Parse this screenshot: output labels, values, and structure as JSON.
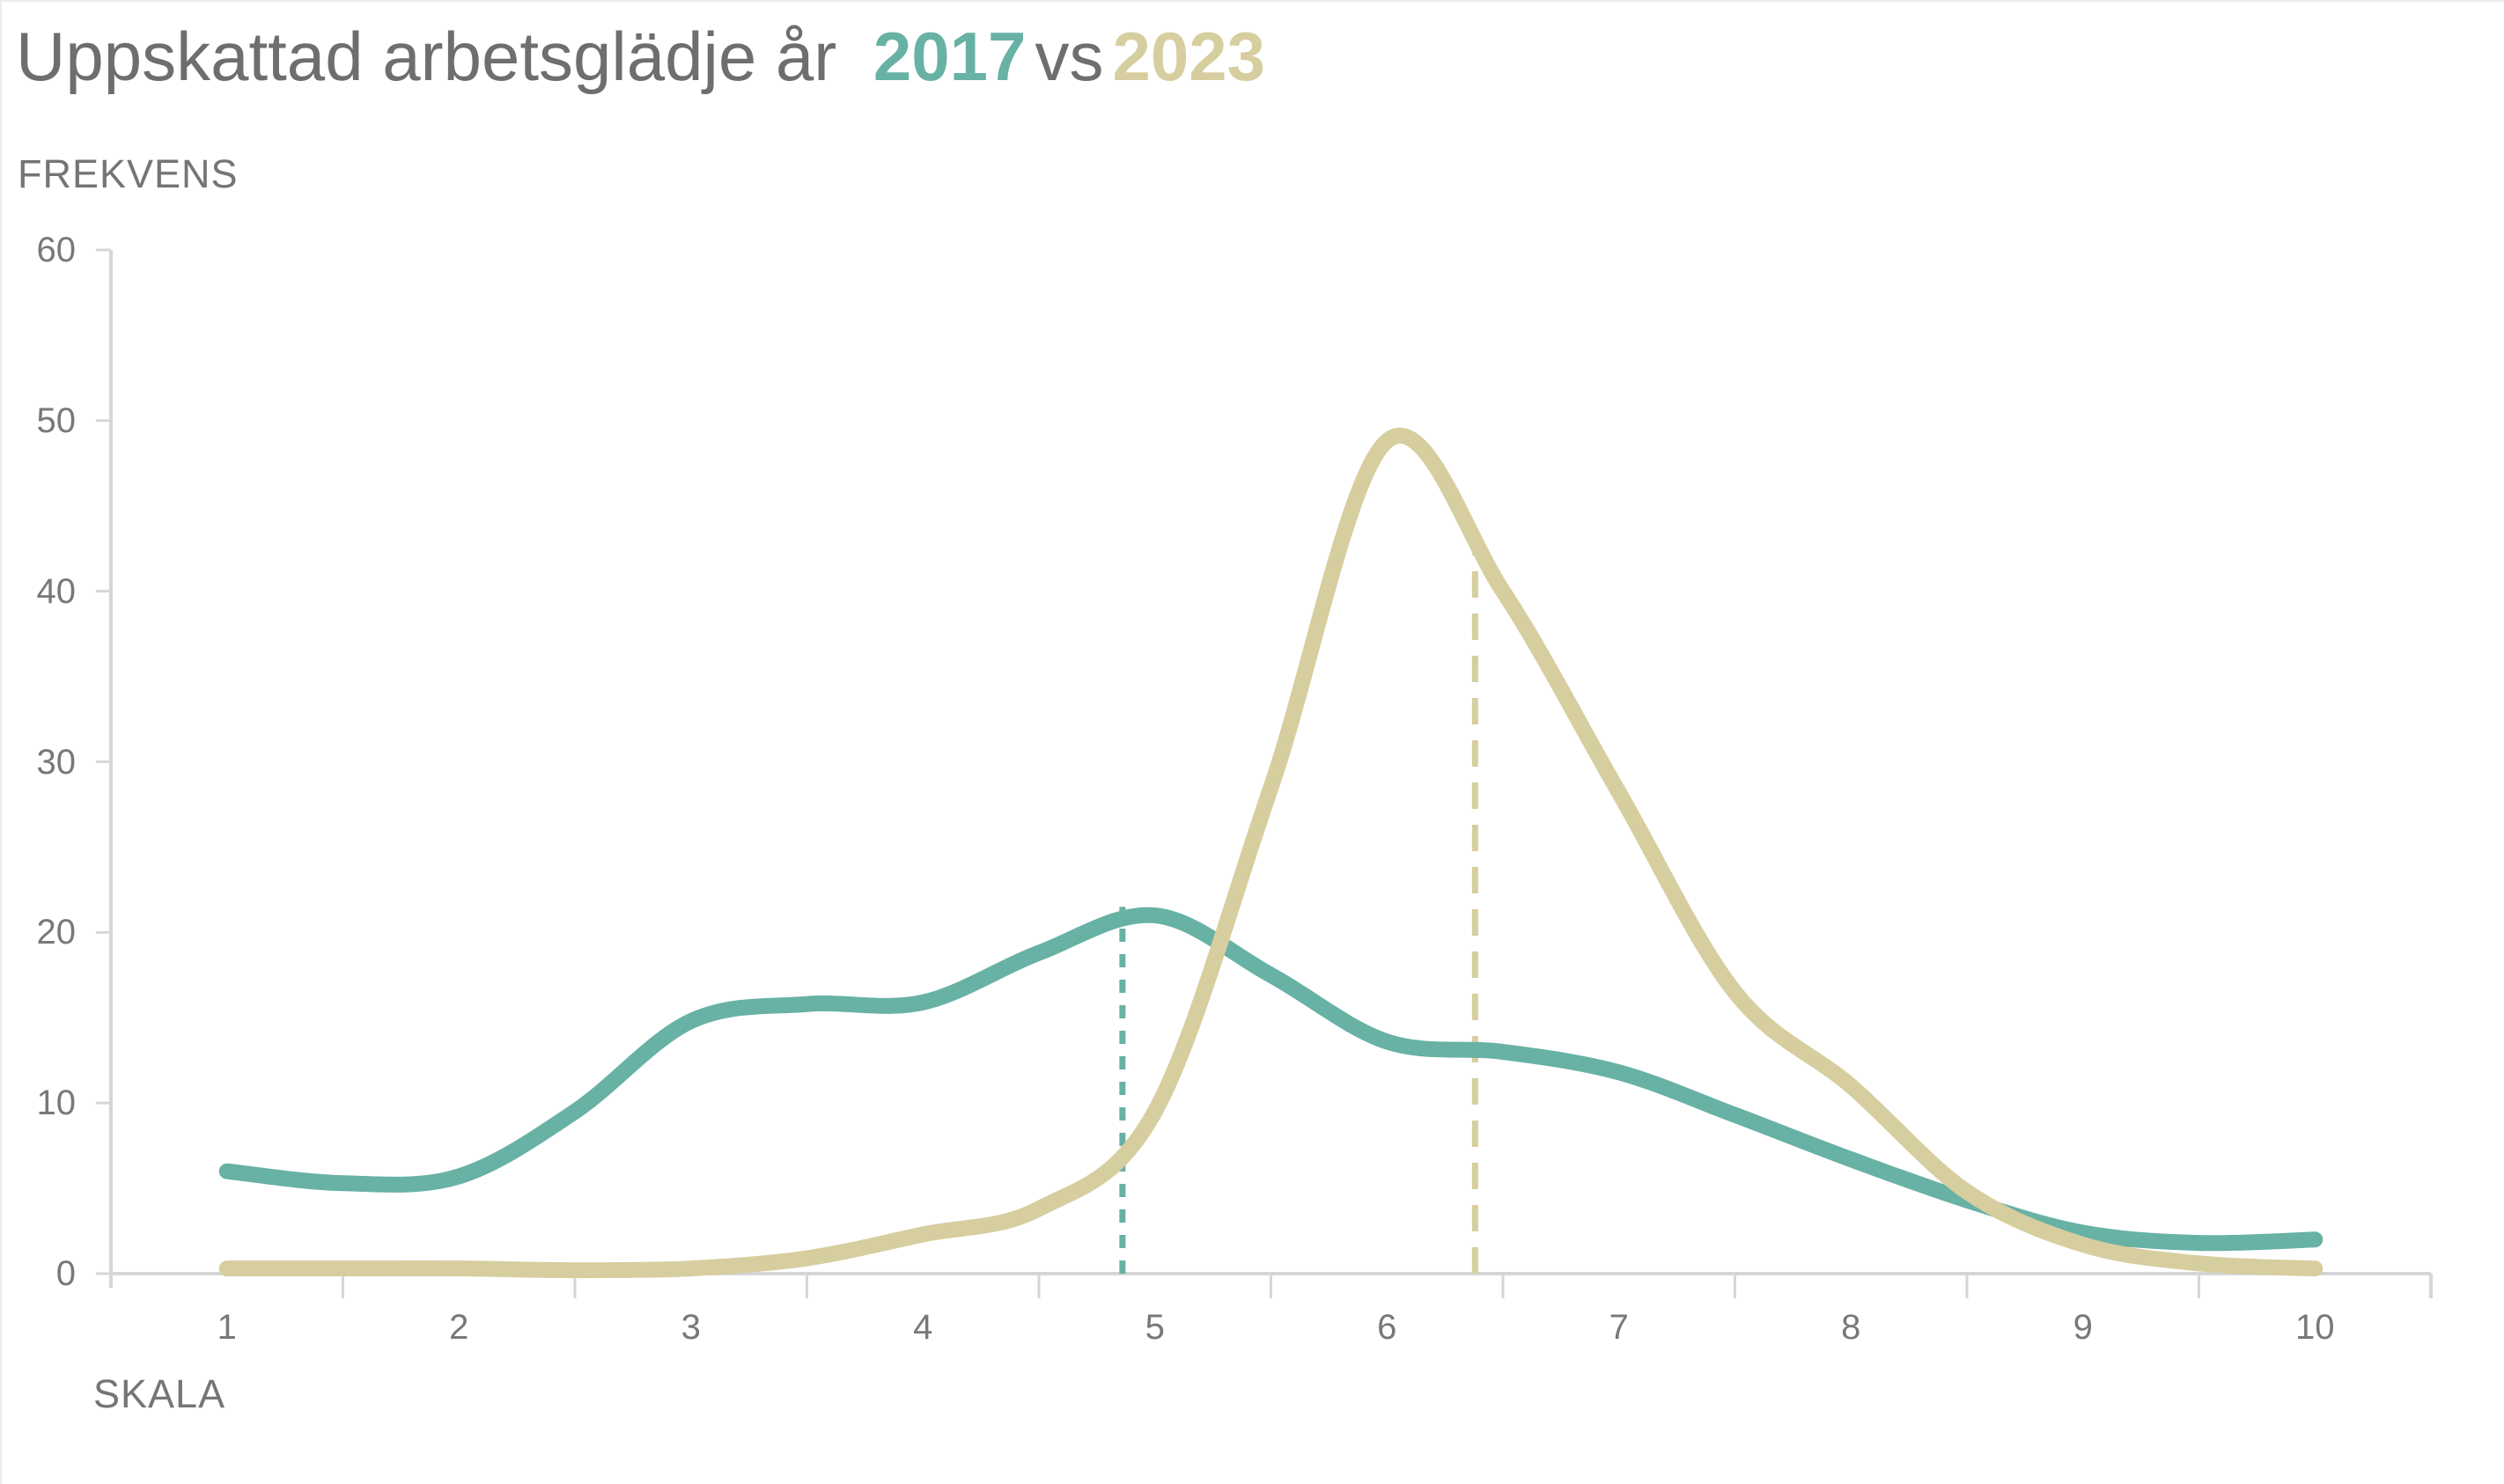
{
  "title": {
    "prefix": "Uppskattad arbetsglädje år",
    "year_a": "2017",
    "middle": "vs",
    "year_b": "2023"
  },
  "colors": {
    "series_2017": "#68b1a5",
    "series_2023": "#d6ce9f",
    "title_text": "#6d6e70",
    "axis_text": "#77787a",
    "axis_line": "#d6d6d6"
  },
  "chart_data": {
    "type": "line",
    "title": "Uppskattad arbetsglädje år 2017 vs 2023",
    "xlabel": "SKALA",
    "ylabel": "FREKVENS",
    "x_range": [
      0.5,
      10.5
    ],
    "y_range": [
      0,
      60
    ],
    "x_ticks": [
      1,
      2,
      3,
      4,
      5,
      6,
      7,
      8,
      9,
      10
    ],
    "y_ticks": [
      0,
      10,
      20,
      30,
      40,
      50,
      60
    ],
    "grid": false,
    "legend": "in-title",
    "x": [
      1,
      1.5,
      2,
      2.5,
      3,
      3.5,
      4,
      4.5,
      5,
      5.5,
      6,
      6.5,
      7,
      7.5,
      8,
      8.5,
      9,
      9.5,
      10
    ],
    "series": [
      {
        "name": "2017",
        "color": "#68b1a5",
        "values": [
          6.0,
          5.3,
          5.7,
          9.5,
          14.8,
          15.8,
          15.9,
          18.8,
          21.0,
          17.5,
          13.6,
          13.0,
          11.8,
          9.3,
          6.7,
          4.3,
          2.4,
          1.8,
          2.0
        ],
        "peak": {
          "x": 5.0,
          "y": 21.0
        }
      },
      {
        "name": "2023",
        "color": "#d6ce9f",
        "values": [
          0.3,
          0.3,
          0.3,
          0.2,
          0.3,
          0.9,
          2.3,
          3.8,
          9.5,
          28.5,
          48.8,
          40.0,
          28.2,
          16.5,
          11.0,
          4.8,
          1.7,
          0.6,
          0.3
        ],
        "peak": {
          "x": 6.05,
          "y": 49.2
        }
      }
    ],
    "mean_lines": [
      {
        "series": "2017",
        "x": 4.86,
        "y_top": 21.5,
        "color": "#68b1a5",
        "dash": [
          15,
          14
        ]
      },
      {
        "series": "2023",
        "x": 6.38,
        "y_top": 42.5,
        "color": "#d6ce9f",
        "dash": [
          30,
          18
        ]
      }
    ]
  }
}
